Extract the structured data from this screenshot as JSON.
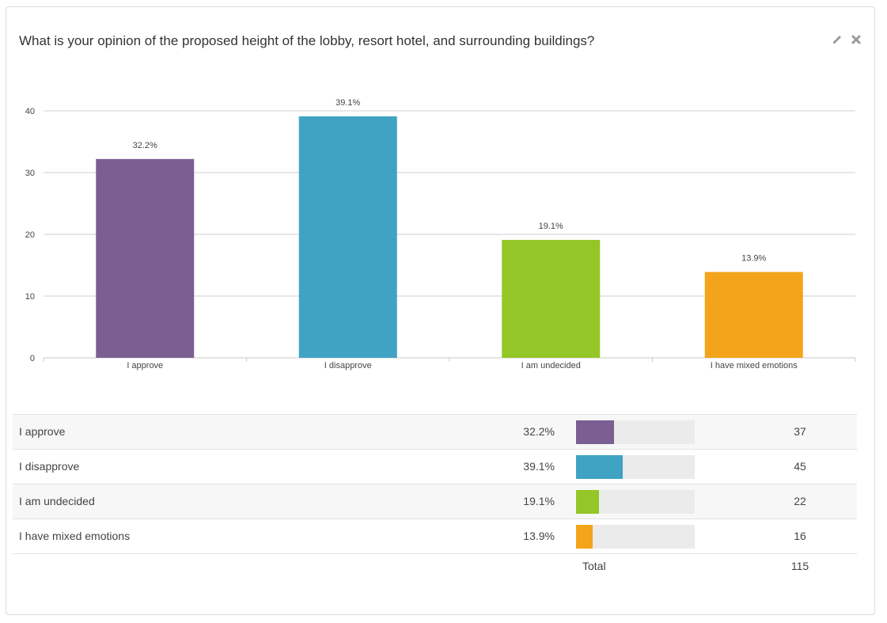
{
  "question": "What is your opinion of the proposed height of the lobby, resort hotel, and surrounding buildings?",
  "actions": {
    "edit_icon": "pencil-icon",
    "close_icon": "close-icon"
  },
  "chart_data": {
    "type": "bar",
    "categories": [
      "I approve",
      "I disapprove",
      "I am undecided",
      "I have mixed emotions"
    ],
    "values": [
      32.2,
      39.1,
      19.1,
      13.9
    ],
    "data_labels": [
      "32.2%",
      "39.1%",
      "19.1%",
      "13.9%"
    ],
    "colors": [
      "#7b5f93",
      "#40a3c4",
      "#94c627",
      "#f4a41a"
    ],
    "ylim": [
      0,
      40
    ],
    "yticks": [
      0,
      10,
      20,
      30,
      40
    ],
    "grid": true,
    "title": "",
    "xlabel": "",
    "ylabel": ""
  },
  "table": {
    "rows": [
      {
        "label": "I approve",
        "percent": "32.2%",
        "fraction": 0.322,
        "count": "37",
        "color": "#7b5f93"
      },
      {
        "label": "I disapprove",
        "percent": "39.1%",
        "fraction": 0.391,
        "count": "45",
        "color": "#40a3c4"
      },
      {
        "label": "I am undecided",
        "percent": "19.1%",
        "fraction": 0.191,
        "count": "22",
        "color": "#94c627"
      },
      {
        "label": "I have mixed emotions",
        "percent": "13.9%",
        "fraction": 0.139,
        "count": "16",
        "color": "#f4a41a"
      }
    ],
    "total_label": "Total",
    "total_value": "115"
  }
}
